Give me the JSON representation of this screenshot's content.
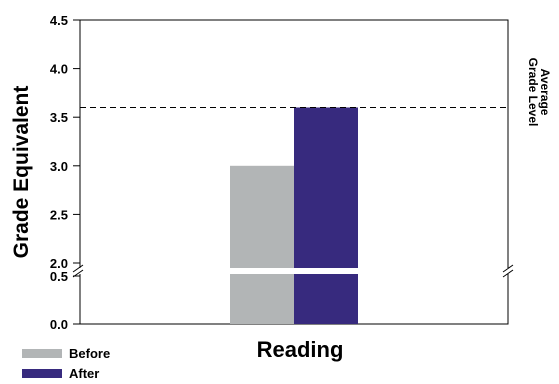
{
  "chart_data": {
    "type": "bar",
    "categories": [
      "Reading"
    ],
    "series": [
      {
        "name": "Before",
        "values": [
          3.0
        ],
        "color": "#b2b5b6"
      },
      {
        "name": "After",
        "values": [
          3.6
        ],
        "color": "#372a7e"
      }
    ],
    "xlabel": "Reading",
    "ylabel": "Grade Equivalent",
    "y_ticks_upper": [
      "2.0",
      "2.5",
      "3.0",
      "3.5",
      "4.0",
      "4.5"
    ],
    "y_ticks_lower": [
      "0.0",
      "0.5"
    ],
    "ylim_upper": [
      2.0,
      4.5
    ],
    "ylim_lower": [
      0.0,
      0.5
    ],
    "axis_break": true,
    "reference_line": {
      "value": 3.6,
      "label_lines": [
        "Average",
        "Grade Level"
      ],
      "style": "dashed"
    },
    "legend_position": "bottom-left",
    "grid": false
  }
}
